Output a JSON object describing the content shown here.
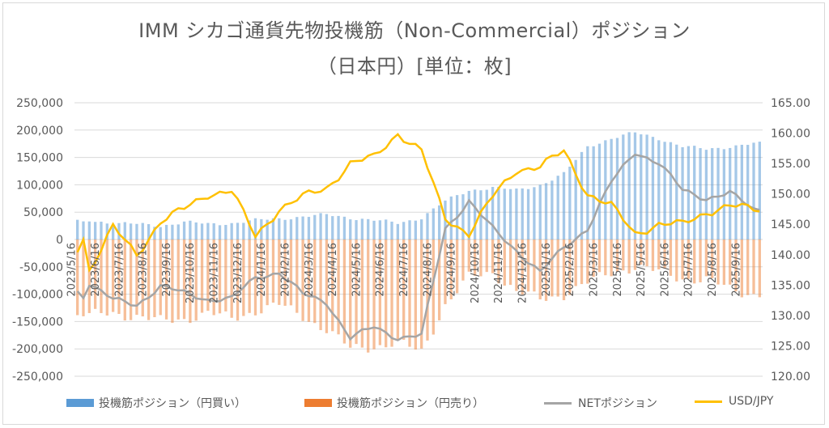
{
  "chart_data": {
    "type": "bar+line",
    "title": "IMM シカゴ通貨先物投機筋（Non-Commercial）ポジション",
    "subtitle": "（日本円）[単位：枚]",
    "left_axis": {
      "ticks": [
        "250,000",
        "200,000",
        "150,000",
        "100,000",
        "50,000",
        "0",
        "-50,000",
        "-100,000",
        "-150,000",
        "-200,000",
        "-250,000"
      ],
      "ylim": [
        -250000,
        250000
      ]
    },
    "right_axis": {
      "ticks": [
        "165.00",
        "160.00",
        "155.00",
        "150.00",
        "145.00",
        "140.00",
        "135.00",
        "130.00",
        "125.00",
        "120.00"
      ],
      "ylim": [
        120,
        165
      ]
    },
    "x_ticks": [
      "2023/5/16",
      "2023/6/16",
      "2023/7/16",
      "2023/8/16",
      "2023/9/16",
      "2023/10/16",
      "2023/11/16",
      "2023/12/16",
      "2024/1/16",
      "2024/2/16",
      "2024/3/16",
      "2024/4/16",
      "2024/5/16",
      "2024/6/16",
      "2024/7/16",
      "2024/8/16",
      "2024/9/16",
      "2024/10/16",
      "2024/11/16",
      "2024/12/16",
      "2025/1/16",
      "2025/2/16",
      "2025/3/16",
      "2025/4/16",
      "2025/5/16",
      "2025/6/16",
      "2025/7/16",
      "2025/8/16",
      "2025/9/16"
    ],
    "series": [
      {
        "name": "投機筋ポジション（円買い）",
        "color": "#5b9bd5",
        "monthly_values": [
          35000,
          30000,
          28000,
          25000,
          32000,
          28000,
          30000,
          35000,
          38000,
          42000,
          45000,
          40000,
          35000,
          30000,
          40000,
          70000,
          90000,
          95000,
          90000,
          100000,
          120000,
          170000,
          185000,
          195000,
          185000,
          170000,
          165000,
          170000,
          175000
        ]
      },
      {
        "name": "投機筋ポジション（円売り）",
        "color": "#ed7d31",
        "monthly_values": [
          -140000,
          -135000,
          -140000,
          -150000,
          -145000,
          -135000,
          -145000,
          -130000,
          -120000,
          -140000,
          -165000,
          -200000,
          -195000,
          -190000,
          -205000,
          -120000,
          -70000,
          -60000,
          -95000,
          -110000,
          -100000,
          -80000,
          -60000,
          -50000,
          -60000,
          -70000,
          -75000,
          -90000,
          -100000
        ]
      },
      {
        "name": "NETポジション",
        "color": "#a5a5a5",
        "monthly_values": [
          -80000,
          -110000,
          -120000,
          -85000,
          -98000,
          -110000,
          -108000,
          -70000,
          -60000,
          -100000,
          -115000,
          -180000,
          -160000,
          -180000,
          -175000,
          20000,
          70000,
          20000,
          -20000,
          -60000,
          -15000,
          20000,
          105000,
          160000,
          140000,
          90000,
          75000,
          85000,
          55000
        ]
      },
      {
        "name": "USD/JPY",
        "color": "#ffc000",
        "monthly_values": [
          137.5,
          144.5,
          140.0,
          145.5,
          147.5,
          150.0,
          150.5,
          143.0,
          147.5,
          149.5,
          151.0,
          155.0,
          156.0,
          160.0,
          157.0,
          146.0,
          143.5,
          149.5,
          154.0,
          154.5,
          157.0,
          150.0,
          148.0,
          143.5,
          145.0,
          145.0,
          147.0,
          148.0,
          147.5
        ]
      }
    ],
    "grid": "horizontal",
    "legend_position": "bottom"
  }
}
